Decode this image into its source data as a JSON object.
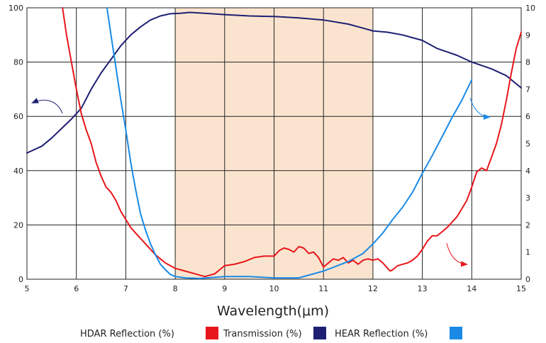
{
  "chart_data": {
    "type": "line",
    "xlabel": "Wavelength(μm)",
    "x_range": [
      5,
      15
    ],
    "y_left_range": [
      0,
      100
    ],
    "y_right_range": [
      0,
      10
    ],
    "x_ticks": [
      "5",
      "6",
      "7",
      "8",
      "9",
      "10",
      "11",
      "12",
      "13",
      "14",
      "15"
    ],
    "y_left_ticks": [
      "0",
      "20",
      "40",
      "60",
      "80",
      "100"
    ],
    "y_right_ticks": [
      "0",
      "1",
      "2",
      "3",
      "4",
      "5",
      "6",
      "7",
      "8",
      "9",
      "10"
    ],
    "grid": true,
    "highlight_band": {
      "x_from": 8,
      "x_to": 12,
      "color": "#fbe4cf"
    },
    "legend": {
      "placement": "bottom",
      "entries": [
        {
          "label": "HDAR Reflection (%)",
          "color": "#e8161b"
        },
        {
          "label": "Transmission (%)",
          "color": "#1d1f73"
        },
        {
          "label": "HEAR Reflection (%)",
          "color": "#1a8ae6"
        }
      ]
    },
    "series": [
      {
        "name": "Transmission (%)",
        "axis": "left",
        "color": "#1d1f73",
        "x": [
          5.0,
          5.3,
          5.5,
          5.7,
          5.9,
          6.1,
          6.3,
          6.5,
          6.7,
          6.9,
          7.1,
          7.3,
          7.5,
          7.7,
          7.9,
          8.1,
          8.3,
          8.6,
          9.0,
          9.5,
          10.0,
          10.5,
          11.0,
          11.5,
          11.8,
          12.0,
          12.3,
          12.6,
          13.0,
          13.3,
          13.7,
          14.0,
          14.4,
          14.7,
          15.0
        ],
        "y": [
          46.5,
          49,
          52,
          55.5,
          59,
          63,
          70,
          76,
          81,
          86,
          90,
          93,
          95.5,
          97,
          97.8,
          98,
          98.3,
          98,
          97.5,
          97,
          96.8,
          96.3,
          95.5,
          94,
          92.5,
          91.5,
          91,
          90,
          88,
          85,
          82.5,
          80,
          77.5,
          75,
          70.5
        ]
      },
      {
        "name": "HDAR Reflection (%)",
        "axis": "right",
        "color": "#e8161b",
        "x": [
          5.72,
          5.8,
          5.9,
          6.0,
          6.1,
          6.2,
          6.3,
          6.4,
          6.5,
          6.6,
          6.7,
          6.8,
          6.9,
          7.0,
          7.1,
          7.2,
          7.3,
          7.4,
          7.5,
          7.6,
          7.7,
          7.8,
          7.9,
          8.0,
          8.2,
          8.4,
          8.5,
          8.6,
          8.7,
          8.8,
          8.9,
          9.0,
          9.2,
          9.4,
          9.6,
          9.8,
          10.0,
          10.1,
          10.2,
          10.3,
          10.4,
          10.5,
          10.6,
          10.7,
          10.8,
          10.9,
          11.0,
          11.1,
          11.2,
          11.3,
          11.4,
          11.5,
          11.6,
          11.7,
          11.8,
          11.9,
          12.0,
          12.1,
          12.2,
          12.3,
          12.35,
          12.4,
          12.5,
          12.6,
          12.7,
          12.8,
          12.9,
          13.0,
          13.1,
          13.2,
          13.3,
          13.4,
          13.5,
          13.6,
          13.7,
          13.8,
          13.9,
          14.0,
          14.1,
          14.2,
          14.3,
          14.4,
          14.5,
          14.6,
          14.7,
          14.8,
          14.9,
          15.0
        ],
        "y": [
          10,
          9.0,
          8.0,
          7.0,
          6.1,
          5.5,
          5.0,
          4.3,
          3.8,
          3.4,
          3.2,
          2.9,
          2.5,
          2.2,
          1.9,
          1.7,
          1.5,
          1.3,
          1.1,
          0.9,
          0.75,
          0.6,
          0.5,
          0.4,
          0.3,
          0.2,
          0.15,
          0.1,
          0.15,
          0.2,
          0.35,
          0.5,
          0.55,
          0.65,
          0.8,
          0.85,
          0.85,
          1.05,
          1.15,
          1.1,
          1.0,
          1.2,
          1.15,
          0.95,
          1.0,
          0.8,
          0.45,
          0.6,
          0.75,
          0.7,
          0.8,
          0.6,
          0.7,
          0.55,
          0.7,
          0.75,
          0.7,
          0.75,
          0.6,
          0.4,
          0.3,
          0.35,
          0.5,
          0.55,
          0.6,
          0.7,
          0.85,
          1.1,
          1.4,
          1.6,
          1.6,
          1.75,
          1.9,
          2.1,
          2.3,
          2.6,
          2.9,
          3.4,
          3.95,
          4.1,
          4.0,
          4.5,
          5.0,
          5.7,
          6.6,
          7.6,
          8.5,
          9.1
        ]
      },
      {
        "name": "HEAR Reflection (%)",
        "axis": "right",
        "color": "#1a8ae6",
        "x": [
          6.62,
          6.7,
          6.8,
          6.9,
          7.0,
          7.1,
          7.2,
          7.3,
          7.4,
          7.5,
          7.6,
          7.7,
          7.8,
          7.9,
          8.0,
          8.2,
          8.5,
          9.0,
          9.5,
          10.0,
          10.5,
          11.0,
          11.5,
          11.8,
          12.0,
          12.2,
          12.4,
          12.6,
          12.8,
          13.0,
          13.2,
          13.4,
          13.6,
          13.8,
          14.0
        ],
        "y": [
          10,
          9.0,
          7.8,
          6.6,
          5.5,
          4.3,
          3.3,
          2.4,
          1.8,
          1.3,
          0.9,
          0.55,
          0.35,
          0.18,
          0.1,
          0.05,
          0.03,
          0.1,
          0.1,
          0.05,
          0.05,
          0.3,
          0.65,
          0.95,
          1.3,
          1.7,
          2.2,
          2.65,
          3.2,
          3.9,
          4.55,
          5.25,
          5.95,
          6.6,
          7.35
        ]
      }
    ],
    "annotations": [
      {
        "type": "arrow",
        "points_to": "left-axis",
        "series": "Transmission (%)",
        "color": "#1d1f73"
      },
      {
        "type": "arrow",
        "points_to": "right-axis",
        "series": "HEAR Reflection (%)",
        "color": "#1a8ae6"
      },
      {
        "type": "arrow",
        "points_to": "right-axis",
        "series": "HDAR Reflection (%)",
        "color": "#e8161b"
      }
    ]
  }
}
